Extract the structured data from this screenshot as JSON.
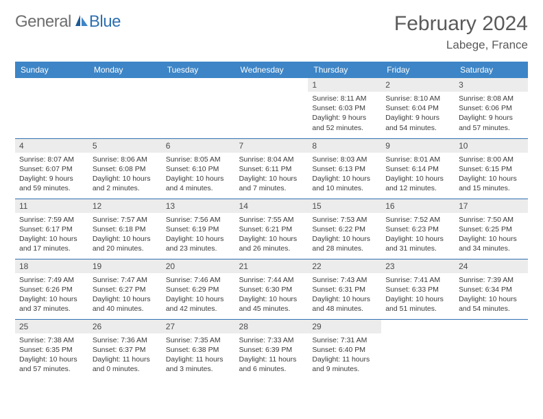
{
  "logo": {
    "general": "General",
    "blue": "Blue"
  },
  "header": {
    "month": "February 2024",
    "location": "Labege, France"
  },
  "colors": {
    "header_bar": "#3d85c6",
    "daynum_bg": "#ececec",
    "row_border": "#2f6fb0",
    "logo_gray": "#6e6e6e",
    "logo_blue": "#2f6fb0",
    "sail_dark": "#1d5a94",
    "sail_light": "#3d85c6"
  },
  "weekday_labels": [
    "Sunday",
    "Monday",
    "Tuesday",
    "Wednesday",
    "Thursday",
    "Friday",
    "Saturday"
  ],
  "weeks": [
    [
      null,
      null,
      null,
      null,
      {
        "n": "1",
        "sunrise": "8:11 AM",
        "sunset": "6:03 PM",
        "daylight": "9 hours and 52 minutes."
      },
      {
        "n": "2",
        "sunrise": "8:10 AM",
        "sunset": "6:04 PM",
        "daylight": "9 hours and 54 minutes."
      },
      {
        "n": "3",
        "sunrise": "8:08 AM",
        "sunset": "6:06 PM",
        "daylight": "9 hours and 57 minutes."
      }
    ],
    [
      {
        "n": "4",
        "sunrise": "8:07 AM",
        "sunset": "6:07 PM",
        "daylight": "9 hours and 59 minutes."
      },
      {
        "n": "5",
        "sunrise": "8:06 AM",
        "sunset": "6:08 PM",
        "daylight": "10 hours and 2 minutes."
      },
      {
        "n": "6",
        "sunrise": "8:05 AM",
        "sunset": "6:10 PM",
        "daylight": "10 hours and 4 minutes."
      },
      {
        "n": "7",
        "sunrise": "8:04 AM",
        "sunset": "6:11 PM",
        "daylight": "10 hours and 7 minutes."
      },
      {
        "n": "8",
        "sunrise": "8:03 AM",
        "sunset": "6:13 PM",
        "daylight": "10 hours and 10 minutes."
      },
      {
        "n": "9",
        "sunrise": "8:01 AM",
        "sunset": "6:14 PM",
        "daylight": "10 hours and 12 minutes."
      },
      {
        "n": "10",
        "sunrise": "8:00 AM",
        "sunset": "6:15 PM",
        "daylight": "10 hours and 15 minutes."
      }
    ],
    [
      {
        "n": "11",
        "sunrise": "7:59 AM",
        "sunset": "6:17 PM",
        "daylight": "10 hours and 17 minutes."
      },
      {
        "n": "12",
        "sunrise": "7:57 AM",
        "sunset": "6:18 PM",
        "daylight": "10 hours and 20 minutes."
      },
      {
        "n": "13",
        "sunrise": "7:56 AM",
        "sunset": "6:19 PM",
        "daylight": "10 hours and 23 minutes."
      },
      {
        "n": "14",
        "sunrise": "7:55 AM",
        "sunset": "6:21 PM",
        "daylight": "10 hours and 26 minutes."
      },
      {
        "n": "15",
        "sunrise": "7:53 AM",
        "sunset": "6:22 PM",
        "daylight": "10 hours and 28 minutes."
      },
      {
        "n": "16",
        "sunrise": "7:52 AM",
        "sunset": "6:23 PM",
        "daylight": "10 hours and 31 minutes."
      },
      {
        "n": "17",
        "sunrise": "7:50 AM",
        "sunset": "6:25 PM",
        "daylight": "10 hours and 34 minutes."
      }
    ],
    [
      {
        "n": "18",
        "sunrise": "7:49 AM",
        "sunset": "6:26 PM",
        "daylight": "10 hours and 37 minutes."
      },
      {
        "n": "19",
        "sunrise": "7:47 AM",
        "sunset": "6:27 PM",
        "daylight": "10 hours and 40 minutes."
      },
      {
        "n": "20",
        "sunrise": "7:46 AM",
        "sunset": "6:29 PM",
        "daylight": "10 hours and 42 minutes."
      },
      {
        "n": "21",
        "sunrise": "7:44 AM",
        "sunset": "6:30 PM",
        "daylight": "10 hours and 45 minutes."
      },
      {
        "n": "22",
        "sunrise": "7:43 AM",
        "sunset": "6:31 PM",
        "daylight": "10 hours and 48 minutes."
      },
      {
        "n": "23",
        "sunrise": "7:41 AM",
        "sunset": "6:33 PM",
        "daylight": "10 hours and 51 minutes."
      },
      {
        "n": "24",
        "sunrise": "7:39 AM",
        "sunset": "6:34 PM",
        "daylight": "10 hours and 54 minutes."
      }
    ],
    [
      {
        "n": "25",
        "sunrise": "7:38 AM",
        "sunset": "6:35 PM",
        "daylight": "10 hours and 57 minutes."
      },
      {
        "n": "26",
        "sunrise": "7:36 AM",
        "sunset": "6:37 PM",
        "daylight": "11 hours and 0 minutes."
      },
      {
        "n": "27",
        "sunrise": "7:35 AM",
        "sunset": "6:38 PM",
        "daylight": "11 hours and 3 minutes."
      },
      {
        "n": "28",
        "sunrise": "7:33 AM",
        "sunset": "6:39 PM",
        "daylight": "11 hours and 6 minutes."
      },
      {
        "n": "29",
        "sunrise": "7:31 AM",
        "sunset": "6:40 PM",
        "daylight": "11 hours and 9 minutes."
      },
      null,
      null
    ]
  ]
}
